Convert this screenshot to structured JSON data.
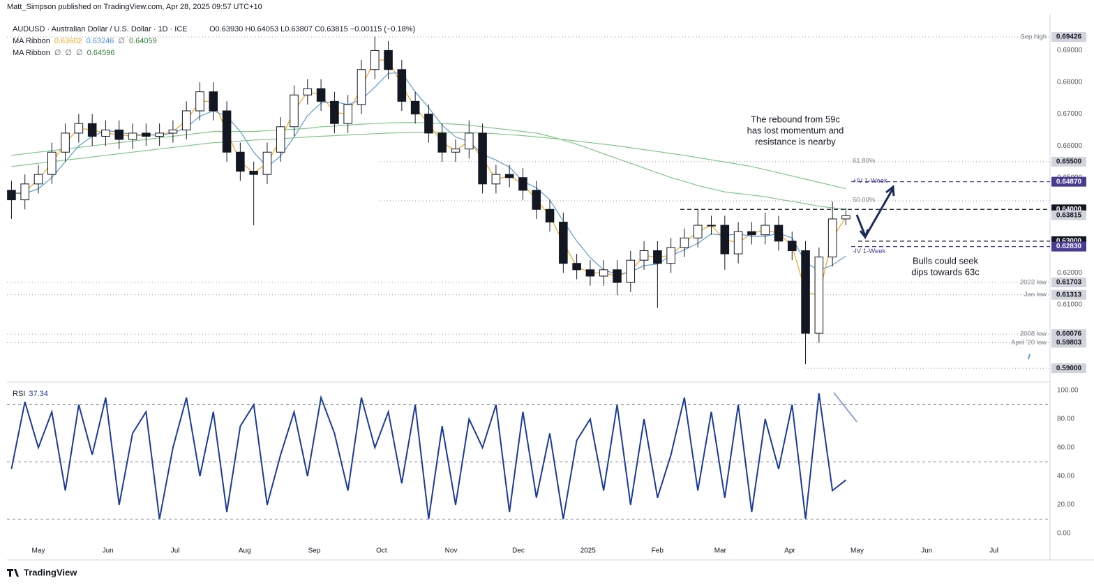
{
  "header": {
    "publisher": "Matt_Simpson published on TradingView.com, Apr 28, 2025 09:57 UTC+10",
    "brand": "TradingView"
  },
  "chart_data": [
    {
      "type": "candlestick",
      "legend": {
        "symbol": "AUDUSD · Australian Dollar / U.S. Dollar · 1D · ICE",
        "ohlc": "O0.63930  H0.64053  L0.63807  C0.63815  −0.00115 (−0.18%)",
        "rows": [
          {
            "name": "MA Ribbon",
            "values": [
              {
                "text": "0.63602",
                "color": "#f7a21b"
              },
              {
                "text": "0.63246",
                "color": "#4a90e2"
              },
              {
                "text": "∅",
                "color": "#555555"
              },
              {
                "text": "0.64059",
                "color": "#2e7d32"
              }
            ]
          },
          {
            "name": "MA Ribbon",
            "values": [
              {
                "text": "∅",
                "color": "#555555"
              },
              {
                "text": "∅",
                "color": "#555555"
              },
              {
                "text": "∅",
                "color": "#555555"
              },
              {
                "text": "0.64596",
                "color": "#2e7d32"
              }
            ]
          }
        ]
      },
      "x": [
        -12,
        -6,
        0,
        6,
        12,
        18,
        24,
        30,
        36,
        42,
        48,
        54,
        60,
        66,
        72,
        78,
        84,
        90,
        96,
        102,
        108,
        114,
        120,
        126,
        132,
        138,
        144,
        150,
        156,
        162,
        168,
        174,
        180,
        186,
        192,
        198,
        204,
        210,
        216,
        222,
        228,
        234,
        240,
        246,
        252,
        258,
        264,
        270,
        276,
        282,
        288,
        294,
        300,
        306,
        312,
        318,
        324,
        330,
        336,
        342,
        348,
        354,
        360
      ],
      "open": [
        0.646,
        0.643,
        0.648,
        0.651,
        0.658,
        0.664,
        0.667,
        0.663,
        0.665,
        0.662,
        0.664,
        0.663,
        0.664,
        0.665,
        0.671,
        0.677,
        0.671,
        0.658,
        0.652,
        0.651,
        0.658,
        0.666,
        0.676,
        0.678,
        0.674,
        0.667,
        0.673,
        0.684,
        0.69,
        0.684,
        0.674,
        0.67,
        0.664,
        0.658,
        0.659,
        0.664,
        0.648,
        0.651,
        0.65,
        0.646,
        0.64,
        0.636,
        0.623,
        0.621,
        0.619,
        0.621,
        0.617,
        0.624,
        0.627,
        0.623,
        0.628,
        0.631,
        0.635,
        0.635,
        0.626,
        0.633,
        0.632,
        0.635,
        0.63,
        0.627,
        0.601,
        0.625,
        0.637
      ],
      "high": [
        0.649,
        0.651,
        0.654,
        0.661,
        0.667,
        0.67,
        0.67,
        0.668,
        0.668,
        0.667,
        0.667,
        0.667,
        0.668,
        0.674,
        0.68,
        0.68,
        0.674,
        0.661,
        0.655,
        0.661,
        0.669,
        0.679,
        0.681,
        0.681,
        0.677,
        0.676,
        0.687,
        0.6943,
        0.693,
        0.687,
        0.677,
        0.673,
        0.667,
        0.662,
        0.668,
        0.667,
        0.654,
        0.654,
        0.653,
        0.649,
        0.643,
        0.639,
        0.626,
        0.624,
        0.624,
        0.624,
        0.627,
        0.63,
        0.63,
        0.631,
        0.634,
        0.64,
        0.638,
        0.638,
        0.636,
        0.636,
        0.639,
        0.638,
        0.633,
        0.63,
        0.628,
        0.6425,
        0.6405
      ],
      "low": [
        0.637,
        0.64,
        0.645,
        0.648,
        0.655,
        0.661,
        0.66,
        0.66,
        0.659,
        0.659,
        0.66,
        0.66,
        0.661,
        0.662,
        0.668,
        0.668,
        0.655,
        0.649,
        0.635,
        0.648,
        0.655,
        0.663,
        0.673,
        0.671,
        0.664,
        0.664,
        0.67,
        0.681,
        0.681,
        0.671,
        0.667,
        0.661,
        0.655,
        0.655,
        0.656,
        0.645,
        0.645,
        0.647,
        0.643,
        0.637,
        0.633,
        0.62,
        0.618,
        0.616,
        0.616,
        0.613,
        0.614,
        0.621,
        0.609,
        0.62,
        0.625,
        0.628,
        0.632,
        0.621,
        0.623,
        0.629,
        0.629,
        0.627,
        0.624,
        0.5913,
        0.598,
        0.622,
        0.635
      ],
      "close": [
        0.643,
        0.648,
        0.651,
        0.658,
        0.664,
        0.667,
        0.663,
        0.665,
        0.662,
        0.664,
        0.663,
        0.664,
        0.665,
        0.671,
        0.677,
        0.671,
        0.658,
        0.652,
        0.651,
        0.658,
        0.666,
        0.676,
        0.678,
        0.674,
        0.667,
        0.673,
        0.684,
        0.69,
        0.684,
        0.674,
        0.67,
        0.664,
        0.658,
        0.659,
        0.664,
        0.648,
        0.651,
        0.65,
        0.646,
        0.64,
        0.636,
        0.623,
        0.621,
        0.619,
        0.621,
        0.617,
        0.624,
        0.627,
        0.623,
        0.628,
        0.631,
        0.635,
        0.635,
        0.626,
        0.633,
        0.632,
        0.635,
        0.63,
        0.627,
        0.601,
        0.625,
        0.637,
        0.638
      ],
      "up_color": "#ffffff",
      "down_color": "#131722",
      "series": [
        {
          "color": "#f7a21b",
          "values": [
            0.645,
            0.6455,
            0.6495,
            0.6545,
            0.661,
            0.6655,
            0.665,
            0.664,
            0.6635,
            0.663,
            0.6635,
            0.6635,
            0.6645,
            0.668,
            0.674,
            0.674,
            0.6645,
            0.655,
            0.6515,
            0.6545,
            0.662,
            0.671,
            0.677,
            0.676,
            0.6705,
            0.67,
            0.6785,
            0.687,
            0.687,
            0.679,
            0.672,
            0.667,
            0.661,
            0.6585,
            0.6615,
            0.656,
            0.6495,
            0.6505,
            0.648,
            0.643,
            0.638,
            0.6295,
            0.622,
            0.62,
            0.62,
            0.619,
            0.6205,
            0.6255,
            0.625,
            0.6255,
            0.6295,
            0.633,
            0.635,
            0.6305,
            0.6295,
            0.6325,
            0.6335,
            0.6325,
            0.6285,
            0.614,
            0.613,
            0.631,
            0.6375
          ]
        },
        {
          "color": "#5b9bd5",
          "values": [
            0.645,
            0.645,
            0.6465,
            0.65,
            0.655,
            0.66,
            0.663,
            0.6648,
            0.6643,
            0.6635,
            0.6635,
            0.6633,
            0.664,
            0.6658,
            0.6693,
            0.671,
            0.6693,
            0.6645,
            0.658,
            0.6533,
            0.6568,
            0.6628,
            0.6695,
            0.6735,
            0.6738,
            0.673,
            0.6745,
            0.6785,
            0.6828,
            0.683,
            0.677,
            0.672,
            0.6665,
            0.6628,
            0.6613,
            0.6573,
            0.6555,
            0.6533,
            0.6488,
            0.6468,
            0.643,
            0.6363,
            0.63,
            0.6248,
            0.621,
            0.6195,
            0.6203,
            0.6223,
            0.6228,
            0.6255,
            0.6273,
            0.6293,
            0.6323,
            0.6318,
            0.6323,
            0.6315,
            0.6315,
            0.6325,
            0.631,
            0.6233,
            0.6208,
            0.6225,
            0.6253
          ]
        },
        {
          "color": "#81c784",
          "values": [
            0.657,
            0.6575,
            0.658,
            0.6585,
            0.659,
            0.6595,
            0.66,
            0.6605,
            0.661,
            0.6615,
            0.662,
            0.6625,
            0.663,
            0.6635,
            0.664,
            0.6645,
            0.6645,
            0.6645,
            0.6645,
            0.6648,
            0.665,
            0.6652,
            0.6655,
            0.666,
            0.6662,
            0.6665,
            0.6668,
            0.667,
            0.6672,
            0.6673,
            0.6673,
            0.6672,
            0.667,
            0.6668,
            0.6665,
            0.666,
            0.6655,
            0.665,
            0.6645,
            0.664,
            0.663,
            0.6618,
            0.6605,
            0.659,
            0.6575,
            0.656,
            0.6545,
            0.653,
            0.6515,
            0.65,
            0.6488,
            0.6475,
            0.6465,
            0.6455,
            0.645,
            0.6445,
            0.644,
            0.6432,
            0.6425,
            0.6418,
            0.641,
            0.6405,
            0.64
          ]
        },
        {
          "color": "#81c784",
          "values": [
            0.6535,
            0.654,
            0.6545,
            0.655,
            0.6555,
            0.656,
            0.6565,
            0.657,
            0.6575,
            0.658,
            0.6585,
            0.659,
            0.6595,
            0.66,
            0.6605,
            0.661,
            0.6612,
            0.6615,
            0.6618,
            0.662,
            0.6622,
            0.6625,
            0.6628,
            0.663,
            0.6632,
            0.6634,
            0.6636,
            0.6638,
            0.664,
            0.6641,
            0.6642,
            0.6643,
            0.6643,
            0.6642,
            0.6641,
            0.664,
            0.6638,
            0.6635,
            0.6632,
            0.6628,
            0.6624,
            0.662,
            0.6615,
            0.661,
            0.6605,
            0.66,
            0.6594,
            0.6588,
            0.6582,
            0.6576,
            0.657,
            0.6563,
            0.6556,
            0.6549,
            0.6542,
            0.6535,
            0.6525,
            0.6515,
            0.6505,
            0.6495,
            0.6485,
            0.6475,
            0.6465
          ]
        }
      ],
      "xlim": [
        -14,
        451
      ],
      "xticks": [
        {
          "value": 0,
          "label": "May"
        },
        {
          "value": 31,
          "label": "Jun"
        },
        {
          "value": 61,
          "label": "Jul"
        },
        {
          "value": 92,
          "label": "Aug"
        },
        {
          "value": 123,
          "label": "Sep"
        },
        {
          "value": 153,
          "label": "Oct"
        },
        {
          "value": 184,
          "label": "Nov"
        },
        {
          "value": 214,
          "label": "Dec"
        },
        {
          "value": 245,
          "label": "2025"
        },
        {
          "value": 276,
          "label": "Feb"
        },
        {
          "value": 304,
          "label": "Mar"
        },
        {
          "value": 335,
          "label": "Apr"
        },
        {
          "value": 365,
          "label": "May"
        },
        {
          "value": 396,
          "label": "Jun"
        },
        {
          "value": 426,
          "label": "Jul"
        }
      ],
      "ylim": [
        0.5863,
        0.7015
      ],
      "yticks": [
        {
          "value": 0.6,
          "label": "0.60000"
        },
        {
          "value": 0.61,
          "label": "0.61000"
        },
        {
          "value": 0.62,
          "label": "0.62000"
        },
        {
          "value": 0.63,
          "label": "0.63000"
        },
        {
          "value": 0.64,
          "label": "0.64000"
        },
        {
          "value": 0.65,
          "label": "0.65000"
        },
        {
          "value": 0.66,
          "label": "0.66000"
        },
        {
          "value": 0.67,
          "label": "0.67000"
        },
        {
          "value": 0.68,
          "label": "0.68000"
        },
        {
          "value": 0.69,
          "label": "0.69000"
        }
      ],
      "levels": [
        {
          "name": "Sep high",
          "value": 0.69426,
          "color": "#d1d4dc",
          "line": "dotted"
        },
        {
          "name": "61.80%",
          "value": 0.655,
          "label": "0.65500",
          "color": "#d1d4dc",
          "line": "dotted"
        },
        {
          "name": "+IV 1-Week",
          "value": 0.6487,
          "label": "0.64870",
          "color": "#4a3b91",
          "line": "dashed"
        },
        {
          "name": "50.00%",
          "value": 0.6427,
          "line": "dotted"
        },
        {
          "value": 0.64,
          "label": "0.64000",
          "color": "#131722",
          "line": "dashed"
        },
        {
          "value": 0.63815,
          "color": "#d1d4dc"
        },
        {
          "value": 0.63,
          "label": "0.63000",
          "color": "#131722",
          "line": "dashed"
        },
        {
          "name": "-IV 1-Week",
          "value": 0.6283,
          "label": "0.62830",
          "color": "#4a3b91",
          "line": "dashed"
        },
        {
          "name": "2022 low",
          "value": 0.61703,
          "color": "#d1d4dc",
          "line": "dotted"
        },
        {
          "name": "Jan low",
          "value": 0.61313,
          "color": "#d1d4dc",
          "line": "dotted"
        },
        {
          "name": "2008 low",
          "value": 0.60076,
          "color": "#d1d4dc",
          "line": "dotted"
        },
        {
          "name": "April '20 low",
          "value": 0.59803,
          "color": "#d1d4dc",
          "line": "dotted"
        },
        {
          "value": 0.59,
          "label": "0.59000",
          "color": "#d1d4dc",
          "line": "dotted"
        }
      ],
      "annotations": [
        [
          "The rebound from 59c",
          "has lost momentum and",
          "resistance is nearby"
        ],
        [
          "Bulls could seek",
          "dips towards 63c"
        ]
      ]
    },
    {
      "type": "line",
      "title": "RSI",
      "last_value": "37.34",
      "color": "#1a3a9c",
      "values": [
        45,
        92,
        60,
        85,
        30,
        90,
        55,
        95,
        20,
        70,
        85,
        10,
        60,
        95,
        40,
        85,
        15,
        75,
        90,
        20,
        55,
        85,
        40,
        95,
        70,
        30,
        95,
        60,
        85,
        35,
        90,
        10,
        75,
        20,
        80,
        60,
        90,
        15,
        85,
        25,
        70,
        10,
        65,
        80,
        30,
        90,
        20,
        80,
        25,
        55,
        95,
        30,
        85,
        25,
        90,
        15,
        80,
        45,
        90,
        10,
        98,
        30,
        37.34
      ],
      "ylim": [
        -4.9,
        103.4
      ],
      "yticks": [
        {
          "value": 0,
          "label": "0.00"
        },
        {
          "value": 20,
          "label": "20.00"
        },
        {
          "value": 40,
          "label": "40.00"
        },
        {
          "value": 60,
          "label": "60.00"
        },
        {
          "value": 80,
          "label": "80.00"
        },
        {
          "value": 100,
          "label": "100.00"
        }
      ],
      "hlines": [
        90,
        50,
        10
      ]
    }
  ]
}
